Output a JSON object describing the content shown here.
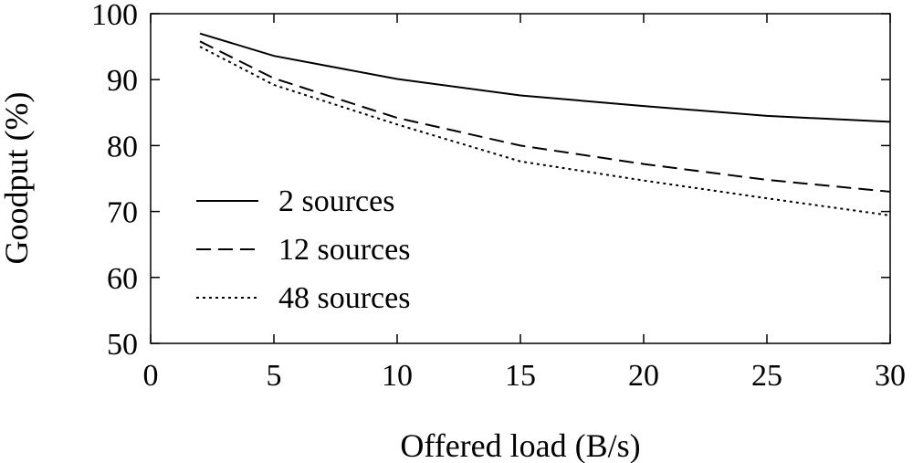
{
  "chart_data": {
    "type": "line",
    "title": "",
    "xlabel": "Offered load (B/s)",
    "ylabel": "Goodput (%)",
    "xlim": [
      0,
      30
    ],
    "ylim": [
      50,
      100
    ],
    "xticks": [
      0,
      5,
      10,
      15,
      20,
      25,
      30
    ],
    "yticks": [
      50,
      60,
      70,
      80,
      90,
      100
    ],
    "grid": false,
    "legend_position": "lower-left",
    "series": [
      {
        "name": "2 sources",
        "line_style": "solid",
        "x": [
          2,
          5,
          10,
          15,
          20,
          25,
          30
        ],
        "y": [
          97.0,
          93.6,
          90.1,
          87.6,
          86.0,
          84.5,
          83.6
        ]
      },
      {
        "name": "12 sources",
        "line_style": "dashed",
        "x": [
          2,
          5,
          10,
          15,
          20,
          25,
          30
        ],
        "y": [
          95.8,
          90.2,
          84.2,
          80.0,
          77.2,
          74.8,
          73.0
        ]
      },
      {
        "name": "48 sources",
        "line_style": "dotted",
        "x": [
          2,
          5,
          10,
          15,
          20,
          25,
          30
        ],
        "y": [
          95.0,
          89.2,
          83.2,
          77.6,
          74.7,
          72.0,
          69.4
        ]
      }
    ]
  }
}
